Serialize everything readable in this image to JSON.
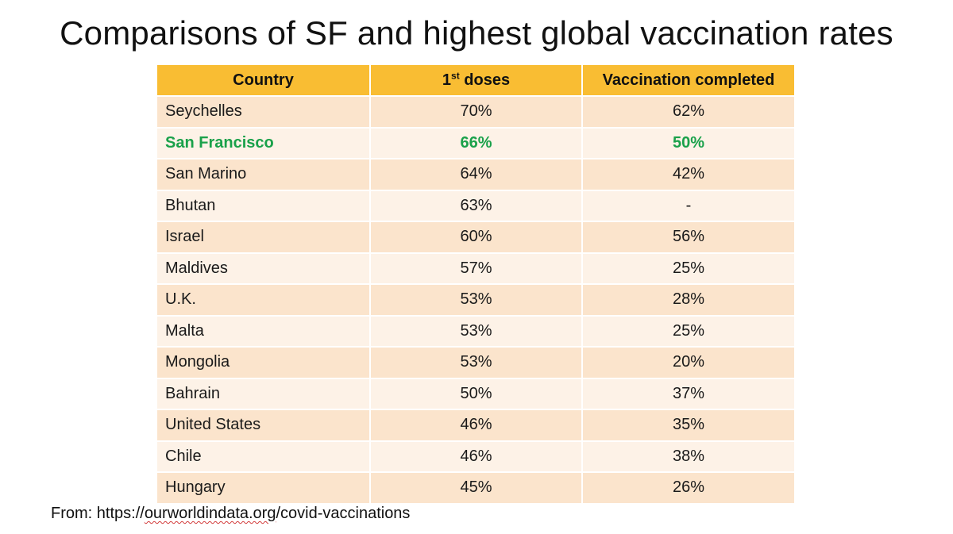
{
  "title": "Comparisons of SF and highest global vaccination rates",
  "table": {
    "headers": {
      "country": "Country",
      "first_doses_main": "1",
      "first_doses_sup": "st",
      "first_doses_rest": " doses",
      "completed": "Vaccination completed"
    },
    "highlight_color": "#1aa14a",
    "header_color": "#f9bd33",
    "rows": [
      {
        "country": "Seychelles",
        "first": "70%",
        "completed": "62%"
      },
      {
        "country": "San Francisco",
        "first": "66%",
        "completed": "50%"
      },
      {
        "country": "San Marino",
        "first": "64%",
        "completed": "42%"
      },
      {
        "country": "Bhutan",
        "first": "63%",
        "completed": "-"
      },
      {
        "country": "Israel",
        "first": "60%",
        "completed": "56%"
      },
      {
        "country": "Maldives",
        "first": "57%",
        "completed": "25%"
      },
      {
        "country": "U.K.",
        "first": "53%",
        "completed": "28%"
      },
      {
        "country": "Malta",
        "first": "53%",
        "completed": "25%"
      },
      {
        "country": "Mongolia",
        "first": "53%",
        "completed": "20%"
      },
      {
        "country": "Bahrain",
        "first": "50%",
        "completed": "37%"
      },
      {
        "country": "United States",
        "first": "46%",
        "completed": "35%"
      },
      {
        "country": "Chile",
        "first": "46%",
        "completed": "38%"
      },
      {
        "country": "Hungary",
        "first": "45%",
        "completed": "26%"
      }
    ]
  },
  "source": {
    "prefix": "From: https://",
    "link_text": "ourworldindata.org",
    "suffix": "/covid-vaccinations"
  }
}
